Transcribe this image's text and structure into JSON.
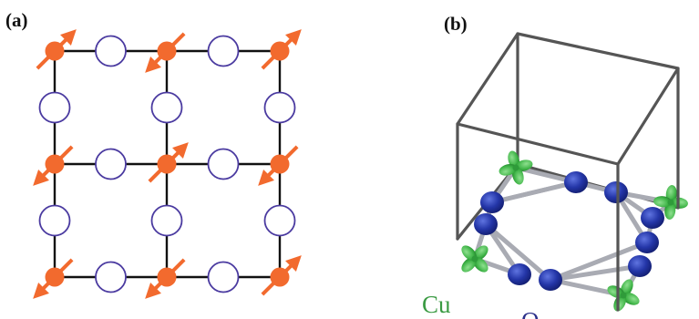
{
  "panels": {
    "a": {
      "label": "(a)"
    },
    "b": {
      "label": "(b)"
    }
  },
  "atom_labels": {
    "cu": "Cu",
    "o": "O"
  },
  "colors": {
    "cu_site": "#f26a2e",
    "o_site_outline": "#4a3aa0",
    "bond": "#111111",
    "cell_edge": "#555555",
    "o_atom": "#2436a8",
    "cu_orbital": "#3fb447",
    "ring_bond": "#a9abb3",
    "cu_text": "#3a9a42",
    "o_text": "#2b2f8a"
  },
  "spins": {
    "grid": [
      [
        "up",
        "down",
        "up"
      ],
      [
        "down",
        "up",
        "down"
      ],
      [
        "down",
        "down",
        "up"
      ]
    ]
  }
}
